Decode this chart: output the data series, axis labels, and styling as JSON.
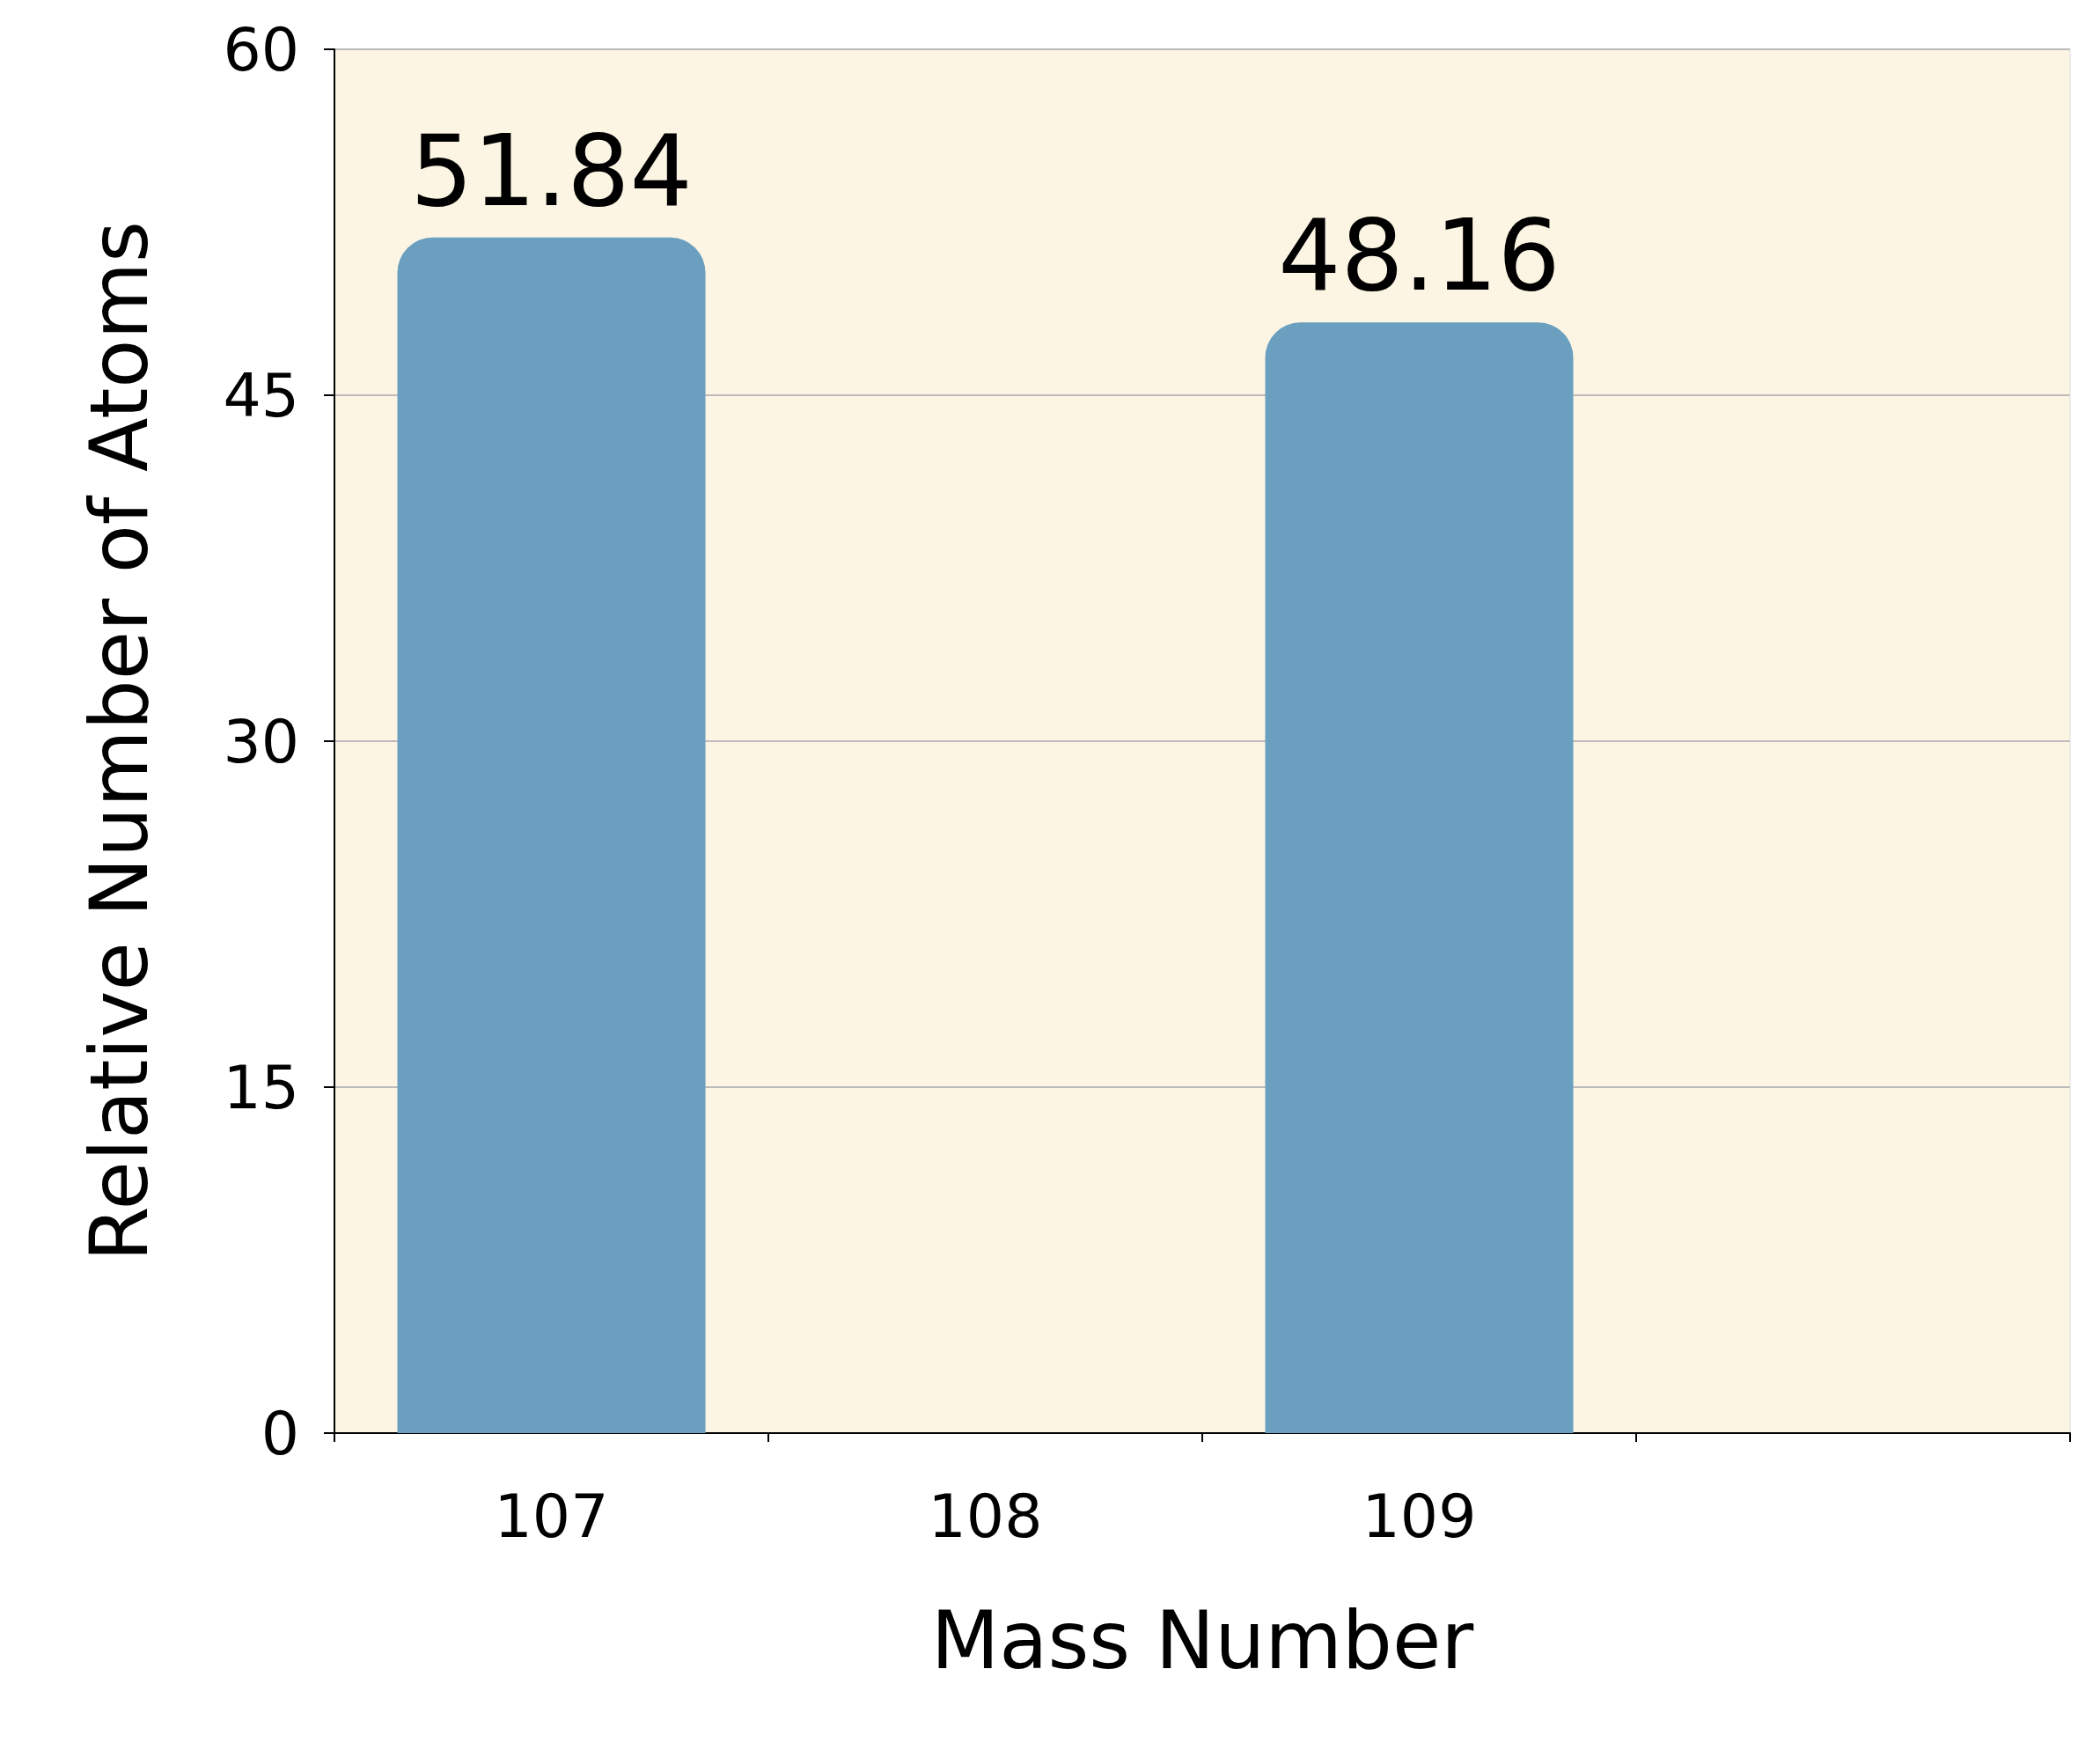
{
  "chart_data": {
    "type": "bar",
    "xlabel": "Mass Number",
    "ylabel": "Relative Number of Atoms",
    "categories": [
      "107",
      "108",
      "109",
      null
    ],
    "values": [
      51.84,
      null,
      48.16,
      null
    ],
    "color": "#6a9fbf",
    "ylim": [
      0,
      60
    ],
    "yticks": [
      0,
      15,
      30,
      45,
      60
    ],
    "grid": "y",
    "data_labels": true
  }
}
